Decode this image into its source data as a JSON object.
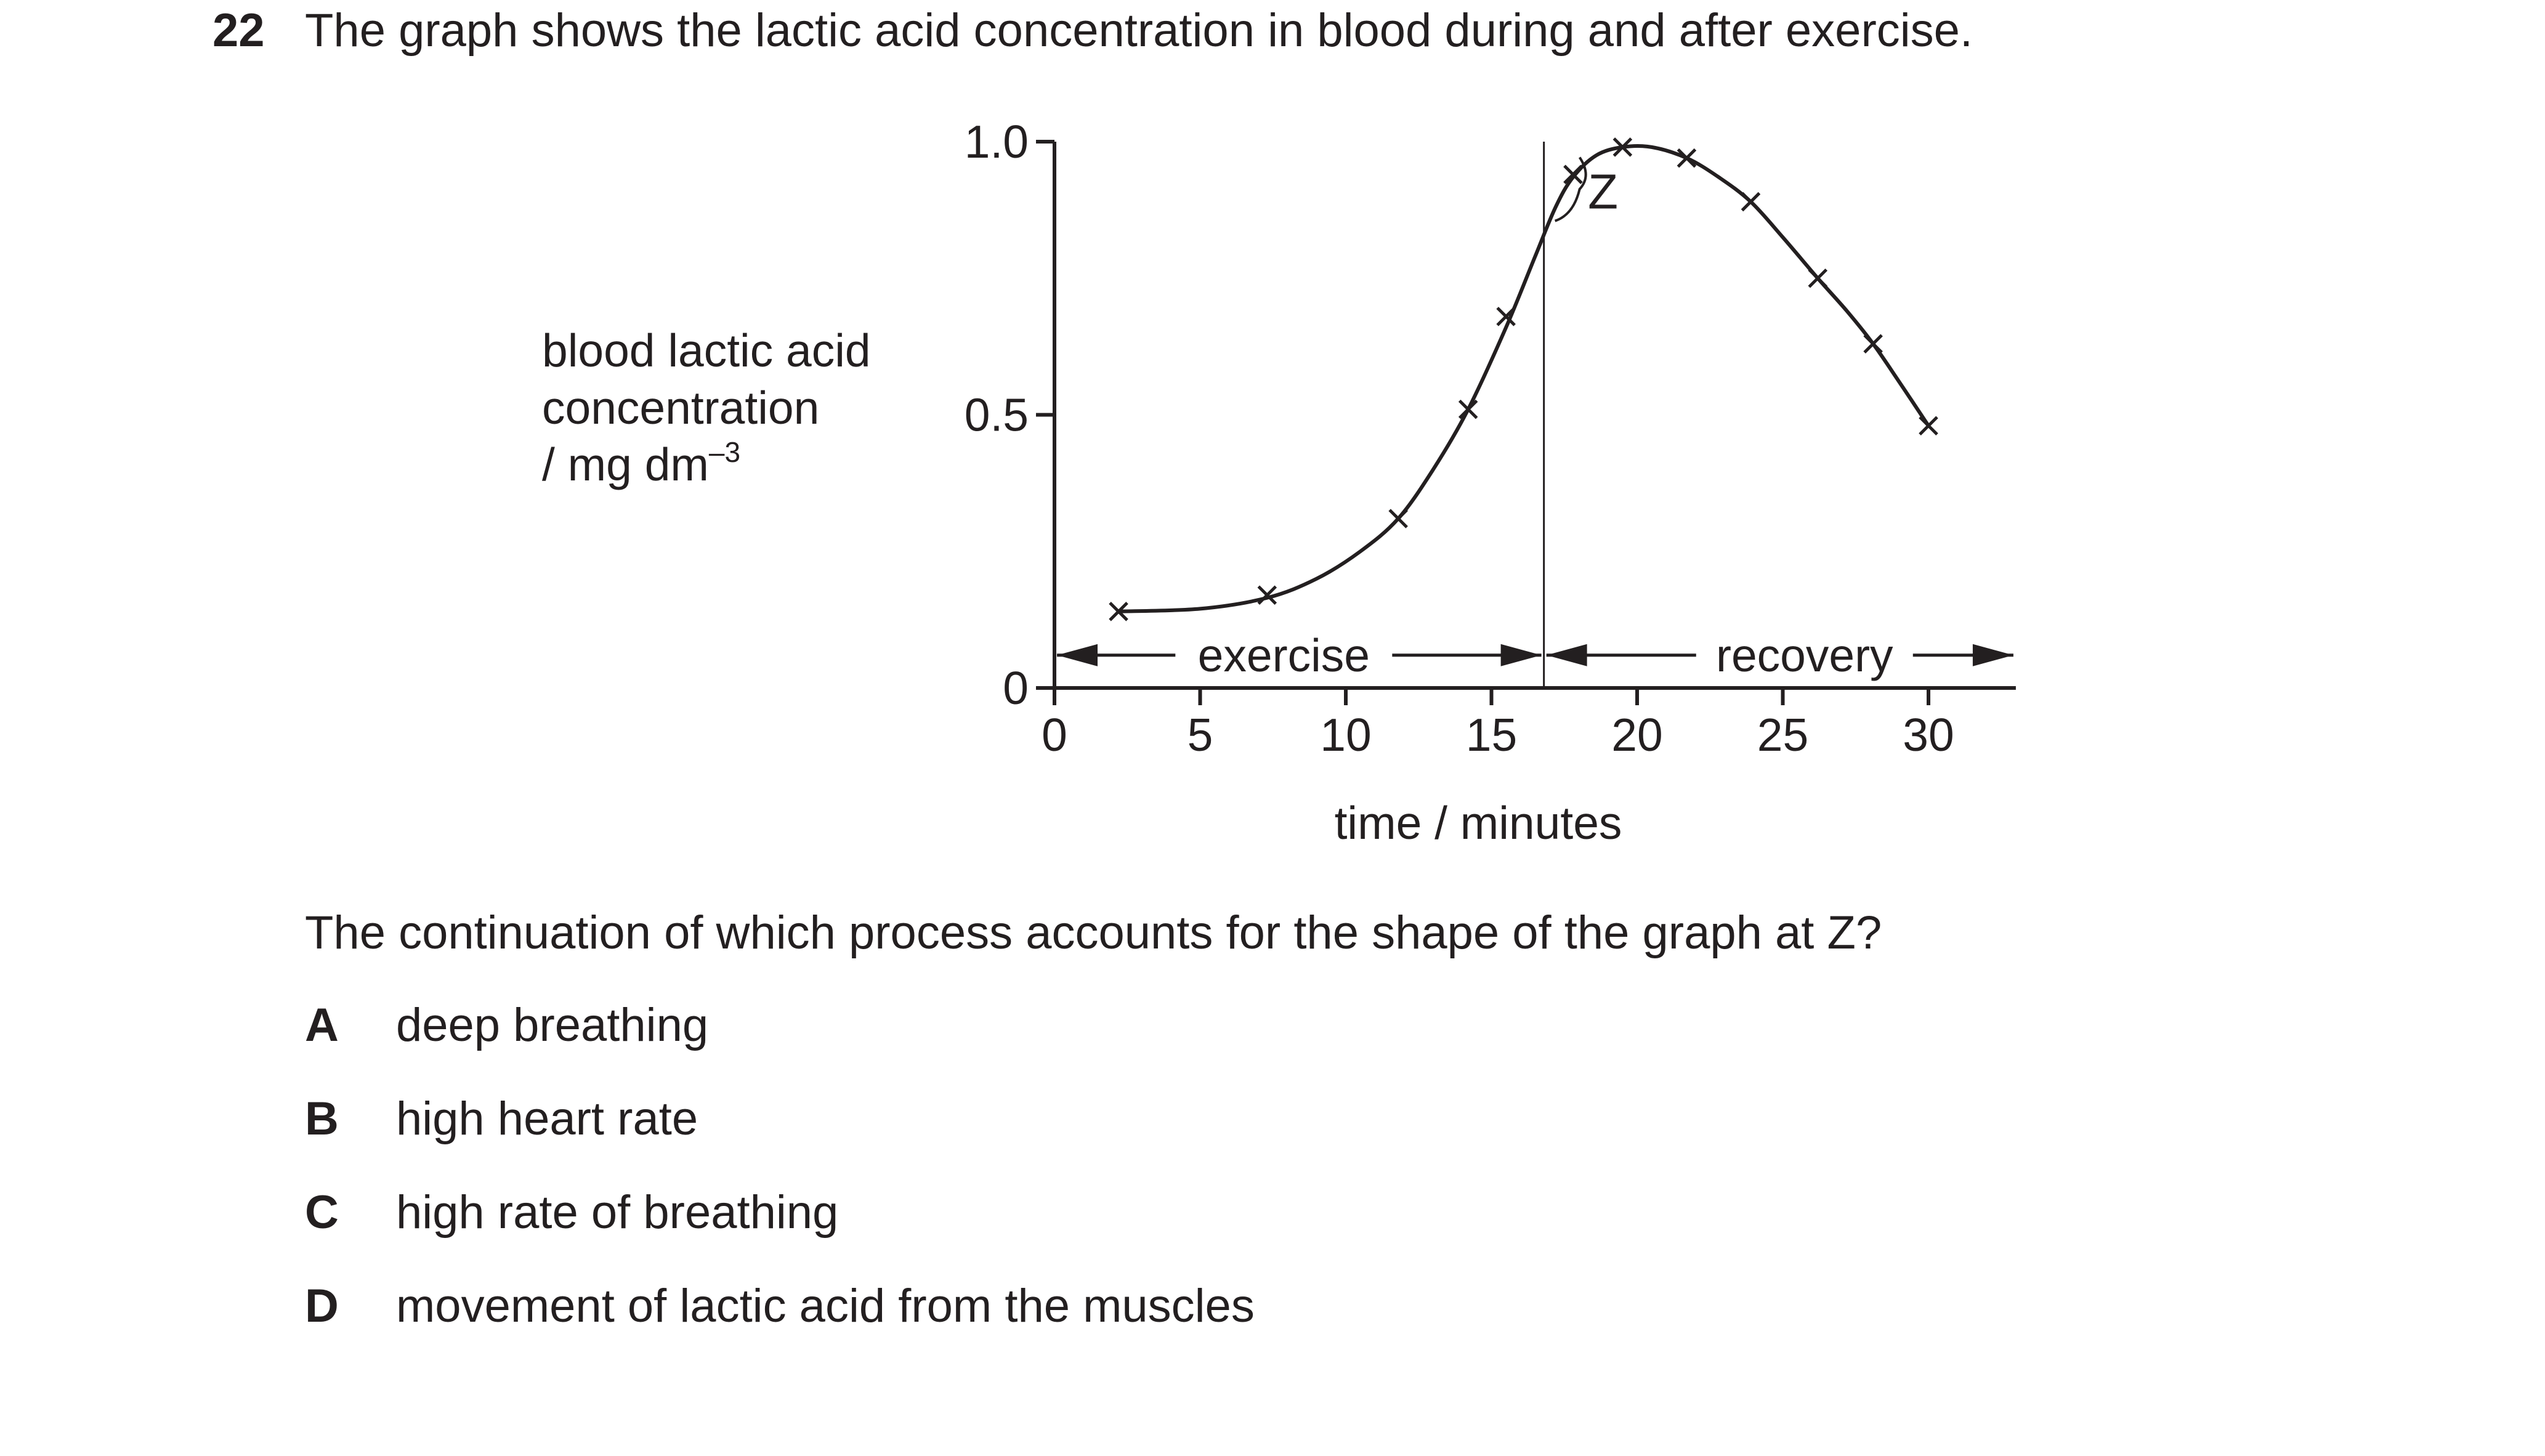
{
  "question": {
    "number": "22",
    "stem": "The graph shows the lactic acid concentration in blood during and after exercise.",
    "prompt": "The continuation of which process accounts for the shape of the graph at Z?",
    "options": [
      {
        "letter": "A",
        "text": "deep breathing"
      },
      {
        "letter": "B",
        "text": "high heart rate"
      },
      {
        "letter": "C",
        "text": "high rate of breathing"
      },
      {
        "letter": "D",
        "text": "movement of lactic acid from the muscles"
      }
    ]
  },
  "chart_data": {
    "type": "line",
    "title": "",
    "xlabel": "time / minutes",
    "ylabel_lines": [
      "blood lactic acid",
      "concentration",
      "/ mg dm"
    ],
    "ylabel_superscript": "–3",
    "xlim": [
      0,
      33
    ],
    "ylim": [
      0,
      1.0
    ],
    "x_ticks": [
      0,
      5,
      10,
      15,
      20,
      25,
      30
    ],
    "x_tick_labels": [
      "0",
      "5",
      "10",
      "15",
      "20",
      "25",
      "30"
    ],
    "y_ticks": [
      0,
      0.5,
      1.0
    ],
    "y_tick_labels": [
      "0",
      "0.5",
      "1.0"
    ],
    "grid": false,
    "marker": "x",
    "series": [
      {
        "x": [
          2.2,
          7.3,
          11.8,
          14.2,
          15.5,
          17.8,
          19.5,
          21.7,
          23.9,
          26.2,
          28.1,
          30.0
        ],
        "y": [
          0.14,
          0.17,
          0.31,
          0.51,
          0.68,
          0.94,
          0.99,
          0.97,
          0.89,
          0.75,
          0.63,
          0.48
        ]
      }
    ],
    "curve": {
      "x": [
        2.2,
        5,
        7.3,
        9,
        10.5,
        11.8,
        13,
        14.2,
        15.5,
        16.5,
        17.2,
        17.8,
        18.6,
        19.5,
        20.5,
        21.7,
        22.8,
        23.9,
        25.0,
        26.2,
        27.2,
        28.1,
        29.0,
        30.0
      ],
      "y": [
        0.14,
        0.145,
        0.165,
        0.2,
        0.25,
        0.31,
        0.4,
        0.51,
        0.66,
        0.79,
        0.88,
        0.935,
        0.975,
        0.99,
        0.99,
        0.97,
        0.935,
        0.89,
        0.825,
        0.75,
        0.69,
        0.63,
        0.56,
        0.48
      ]
    },
    "divider_x": 16.8,
    "periods": [
      {
        "label": "exercise",
        "from": 0,
        "to": 16.8
      },
      {
        "label": "recovery",
        "from": 16.8,
        "to": 33
      }
    ],
    "periods_y": 0.06,
    "annotation": {
      "label": "Z",
      "x_from": 16.8,
      "x_to": 18.1,
      "y_from": 0.9,
      "y_to": 0.96
    }
  }
}
